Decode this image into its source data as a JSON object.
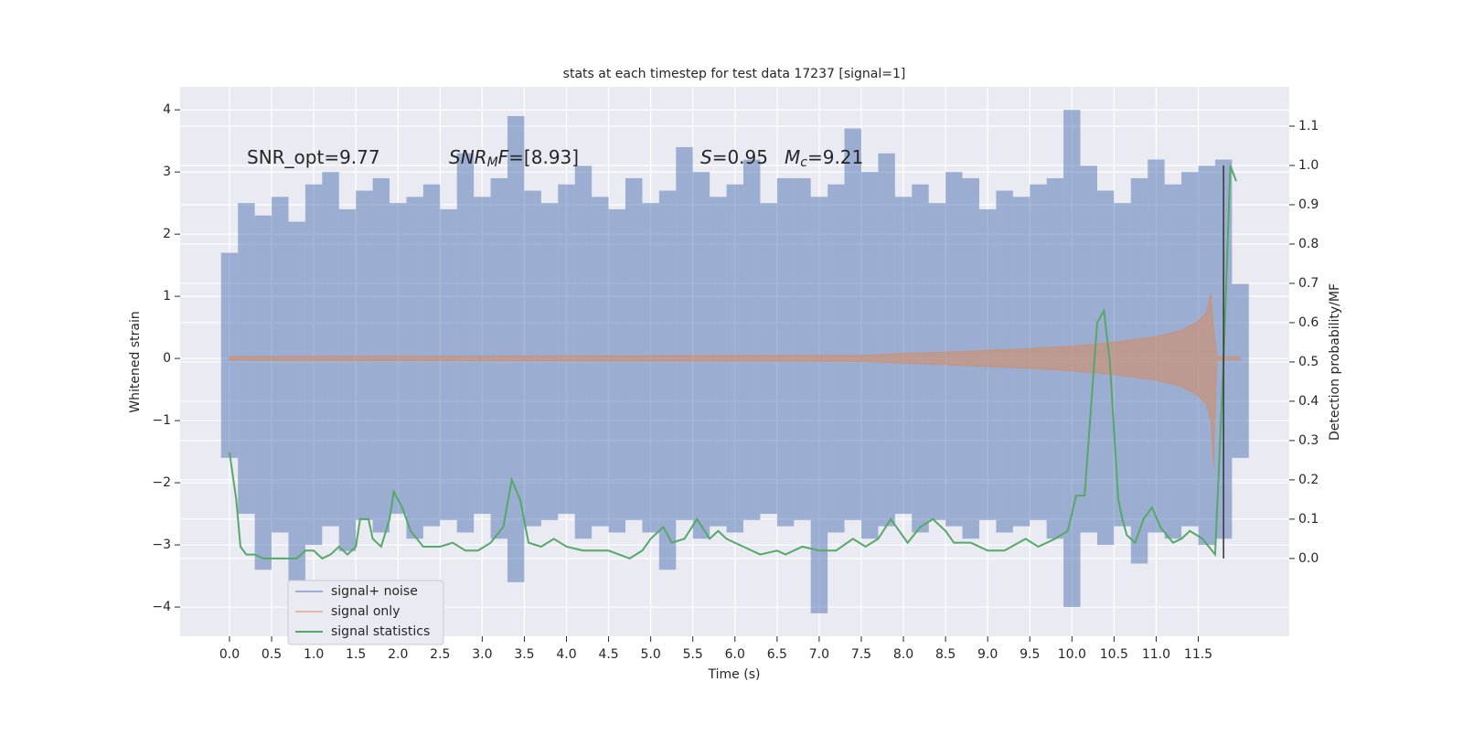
{
  "chart_data": {
    "type": "line",
    "title": "stats at each timestep for test data 17237 [signal=1]",
    "xlabel": "Time (s)",
    "ylabel": "Whitened strain",
    "y2label": "Detection probability/MF",
    "xlim": [
      -0.586,
      12.58
    ],
    "ylim": [
      -4.47,
      4.37
    ],
    "y2lim": [
      -0.198,
      1.2
    ],
    "xticks": [
      {
        "value": 0,
        "label": "0.0"
      },
      {
        "value": 0.5,
        "label": "0.5"
      },
      {
        "value": 1,
        "label": "1.0"
      },
      {
        "value": 1.5,
        "label": "1.5"
      },
      {
        "value": 2,
        "label": "2.0"
      },
      {
        "value": 2.5,
        "label": "2.5"
      },
      {
        "value": 3,
        "label": "3.0"
      },
      {
        "value": 3.5,
        "label": "3.5"
      },
      {
        "value": 4,
        "label": "4.0"
      },
      {
        "value": 4.5,
        "label": "4.5"
      },
      {
        "value": 5,
        "label": "5.0"
      },
      {
        "value": 5.5,
        "label": "5.5"
      },
      {
        "value": 6,
        "label": "6.0"
      },
      {
        "value": 6.5,
        "label": "6.5"
      },
      {
        "value": 7,
        "label": "7.0"
      },
      {
        "value": 7.5,
        "label": "7.5"
      },
      {
        "value": 8,
        "label": "8.0"
      },
      {
        "value": 8.5,
        "label": "8.5"
      },
      {
        "value": 9,
        "label": "9.0"
      },
      {
        "value": 9.5,
        "label": "9.5"
      },
      {
        "value": 10,
        "label": "10.0"
      },
      {
        "value": 10.5,
        "label": "10.5"
      },
      {
        "value": 11,
        "label": "11.0"
      },
      {
        "value": 11.5,
        "label": "11.5"
      }
    ],
    "yticks": [
      {
        "value": -4,
        "label": "−4"
      },
      {
        "value": -3,
        "label": "−3"
      },
      {
        "value": -2,
        "label": "−2"
      },
      {
        "value": -1,
        "label": "−1"
      },
      0,
      1,
      2,
      3,
      4
    ],
    "y2ticks": [
      {
        "value": 0,
        "label": "0.0"
      },
      {
        "value": 0.1,
        "label": "0.1"
      },
      {
        "value": 0.2,
        "label": "0.2"
      },
      {
        "value": 0.3,
        "label": "0.3"
      },
      {
        "value": 0.4,
        "label": "0.4"
      },
      {
        "value": 0.5,
        "label": "0.5"
      },
      {
        "value": 0.6,
        "label": "0.6"
      },
      {
        "value": 0.7,
        "label": "0.7"
      },
      {
        "value": 0.8,
        "label": "0.8"
      },
      {
        "value": 0.9,
        "label": "0.9"
      },
      {
        "value": 1,
        "label": "1.0"
      },
      {
        "value": 1.1,
        "label": "1.1"
      }
    ],
    "grid": true,
    "legend": "lower left",
    "annotations": [
      [
        {
          "text": "SNR_opt=9.77"
        }
      ],
      [
        {
          "text": "SNR",
          "italic": true
        },
        {
          "sub": "M"
        },
        {
          "text": "F",
          "italic": true
        },
        {
          "text": "=[8.93]"
        }
      ],
      [
        {
          "text": "S",
          "italic": true
        },
        {
          "text": "=0.95"
        }
      ],
      [
        {
          "text": "M",
          "italic": true
        },
        {
          "sub": "c"
        },
        {
          "text": "=9.21"
        }
      ]
    ],
    "vline": {
      "x": 11.8,
      "color": "#3d3d3d"
    },
    "series": [
      {
        "name": "signal+ noise",
        "color": "#4c72b0",
        "alpha": 0.5,
        "x": [
          0,
          0.2,
          0.4,
          0.6,
          0.8,
          1,
          1.2,
          1.4,
          1.6,
          1.8,
          2,
          2.2,
          2.4,
          2.6,
          2.8,
          3,
          3.2,
          3.4,
          3.6,
          3.8,
          4,
          4.2,
          4.4,
          4.6,
          4.8,
          5,
          5.2,
          5.4,
          5.6,
          5.8,
          6,
          6.2,
          6.4,
          6.6,
          6.8,
          7,
          7.2,
          7.4,
          7.6,
          7.8,
          8,
          8.2,
          8.4,
          8.6,
          8.8,
          9,
          9.2,
          9.4,
          9.6,
          9.8,
          10,
          10.2,
          10.4,
          10.6,
          10.8,
          11,
          11.2,
          11.4,
          11.6,
          11.8,
          12
        ],
        "upper": [
          1.7,
          2.5,
          2.3,
          2.6,
          2.2,
          2.8,
          3.0,
          2.4,
          2.7,
          2.9,
          2.5,
          2.6,
          2.8,
          2.4,
          3.3,
          2.6,
          2.9,
          3.9,
          2.7,
          2.5,
          2.8,
          3.1,
          2.6,
          2.4,
          2.9,
          2.5,
          2.7,
          3.4,
          3.0,
          2.6,
          2.8,
          3.2,
          2.5,
          2.9,
          2.9,
          2.6,
          2.8,
          3.7,
          3.0,
          3.3,
          2.6,
          2.8,
          2.5,
          3.0,
          2.9,
          2.4,
          2.7,
          2.6,
          2.8,
          2.9,
          4.0,
          3.1,
          2.7,
          2.5,
          2.9,
          3.2,
          2.8,
          3.0,
          3.1,
          3.2,
          1.2
        ],
        "lower": [
          -1.6,
          -2.5,
          -3.4,
          -2.8,
          -3.9,
          -3.0,
          -2.7,
          -3.1,
          -2.6,
          -2.8,
          -2.5,
          -2.9,
          -2.7,
          -2.6,
          -2.8,
          -2.5,
          -2.9,
          -3.6,
          -2.7,
          -2.6,
          -2.5,
          -2.9,
          -2.7,
          -2.8,
          -2.6,
          -2.8,
          -3.4,
          -2.6,
          -2.9,
          -2.7,
          -2.8,
          -2.6,
          -2.5,
          -2.7,
          -2.6,
          -4.1,
          -2.8,
          -2.6,
          -2.9,
          -2.7,
          -2.5,
          -2.8,
          -2.6,
          -2.7,
          -2.9,
          -2.6,
          -2.8,
          -2.7,
          -2.6,
          -2.9,
          -4.0,
          -2.8,
          -3.0,
          -2.7,
          -3.3,
          -2.8,
          -2.9,
          -2.7,
          -3.0,
          -2.9,
          -1.6
        ]
      },
      {
        "name": "signal only",
        "color": "#dd8452",
        "alpha": 0.5,
        "x": [
          0,
          7.5,
          8,
          8.5,
          9,
          9.5,
          10,
          10.5,
          11,
          11.3,
          11.5,
          11.6,
          11.65,
          11.68,
          11.72,
          12
        ],
        "upper": [
          0.03,
          0.05,
          0.08,
          0.1,
          0.13,
          0.16,
          0.2,
          0.26,
          0.35,
          0.45,
          0.6,
          0.75,
          1.05,
          0.5,
          0.03,
          0.02
        ],
        "lower": [
          -0.03,
          -0.05,
          -0.08,
          -0.1,
          -0.13,
          -0.16,
          -0.2,
          -0.26,
          -0.35,
          -0.45,
          -0.6,
          -0.75,
          -1.0,
          -1.75,
          -0.03,
          -0.02
        ]
      },
      {
        "name": "signal statistics",
        "color": "#55a868",
        "axis": "y2",
        "x": [
          0,
          0.08,
          0.13,
          0.2,
          0.3,
          0.4,
          0.6,
          0.8,
          0.9,
          1,
          1.1,
          1.2,
          1.3,
          1.4,
          1.5,
          1.55,
          1.65,
          1.7,
          1.8,
          1.9,
          1.95,
          2.05,
          2.15,
          2.3,
          2.5,
          2.65,
          2.8,
          2.95,
          3.1,
          3.25,
          3.35,
          3.45,
          3.55,
          3.7,
          3.85,
          4,
          4.2,
          4.5,
          4.75,
          4.9,
          5,
          5.15,
          5.25,
          5.4,
          5.55,
          5.7,
          5.8,
          5.9,
          6.1,
          6.3,
          6.5,
          6.6,
          6.8,
          7,
          7.2,
          7.4,
          7.55,
          7.7,
          7.85,
          7.95,
          8.05,
          8.2,
          8.35,
          8.5,
          8.6,
          8.8,
          9,
          9.2,
          9.45,
          9.6,
          9.8,
          9.95,
          10.05,
          10.15,
          10.3,
          10.38,
          10.45,
          10.55,
          10.6,
          10.65,
          10.75,
          10.85,
          10.95,
          11.05,
          11.2,
          11.3,
          11.4,
          11.55,
          11.7,
          11.8,
          11.88,
          11.95
        ],
        "values": [
          0.27,
          0.15,
          0.03,
          0.01,
          0.01,
          0,
          0,
          0,
          0.02,
          0.02,
          0,
          0.01,
          0.03,
          0.01,
          0.03,
          0.1,
          0.1,
          0.05,
          0.03,
          0.1,
          0.17,
          0.13,
          0.07,
          0.03,
          0.03,
          0.04,
          0.02,
          0.02,
          0.04,
          0.08,
          0.2,
          0.15,
          0.04,
          0.03,
          0.05,
          0.03,
          0.02,
          0.02,
          0,
          0.02,
          0.05,
          0.08,
          0.04,
          0.05,
          0.1,
          0.05,
          0.07,
          0.05,
          0.03,
          0.01,
          0.02,
          0.01,
          0.03,
          0.02,
          0.02,
          0.05,
          0.03,
          0.05,
          0.1,
          0.07,
          0.04,
          0.08,
          0.1,
          0.07,
          0.04,
          0.04,
          0.02,
          0.02,
          0.05,
          0.03,
          0.05,
          0.07,
          0.16,
          0.16,
          0.6,
          0.63,
          0.5,
          0.15,
          0.1,
          0.06,
          0.04,
          0.1,
          0.13,
          0.08,
          0.04,
          0.05,
          0.07,
          0.05,
          0.01,
          0.5,
          1.0,
          0.96
        ]
      }
    ]
  }
}
